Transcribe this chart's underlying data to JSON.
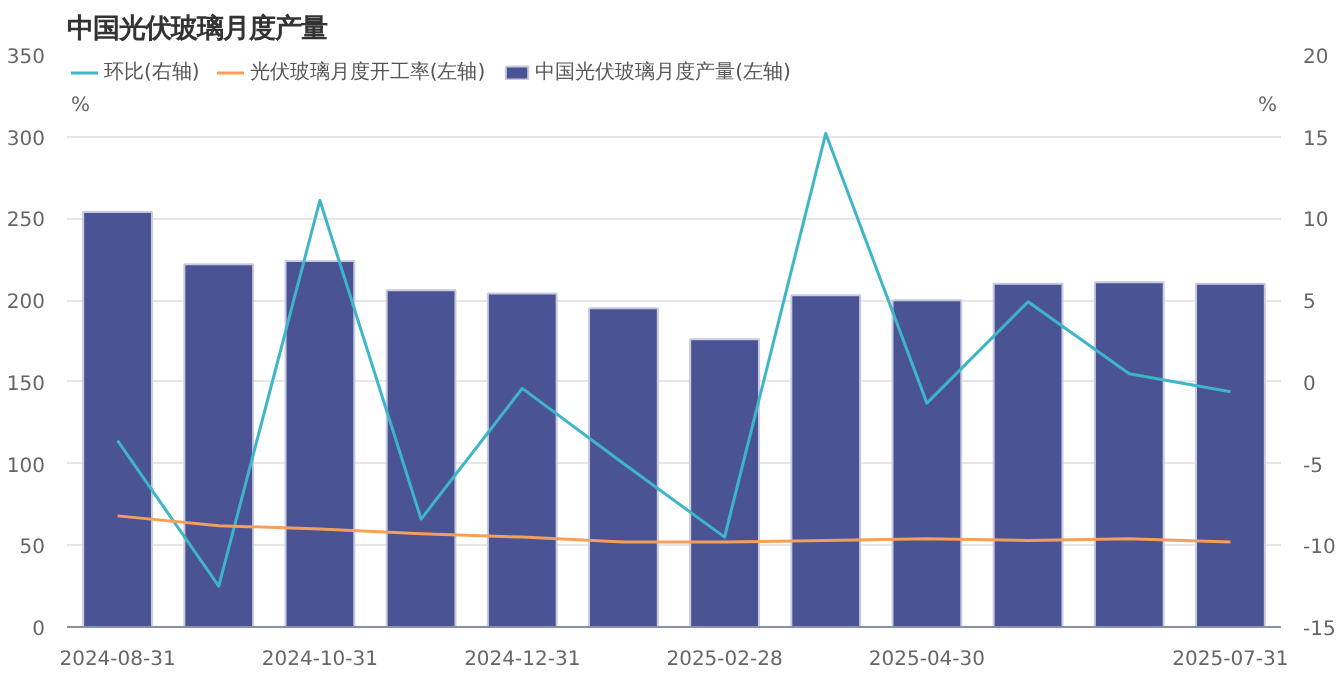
{
  "chart_data": {
    "type": "bar",
    "title": "中国光伏玻璃月度产量",
    "ylabel": "%",
    "y2label": "%",
    "categories": [
      "2024-08-31",
      null,
      "2024-10-31",
      null,
      "2024-12-31",
      null,
      "2025-02-28",
      null,
      "2025-04-30",
      null,
      null,
      "2025-07-31"
    ],
    "series": [
      {
        "name": "环比(右轴)",
        "type": "line",
        "axis": "y2",
        "color": "#3fb5c9",
        "values": [
          -3.6,
          -12.5,
          11.1,
          -8.4,
          -0.4,
          -5,
          -9.5,
          15.2,
          -1.3,
          4.9,
          0.5,
          -0.6
        ]
      },
      {
        "name": "光伏玻璃月度开工率(左轴)",
        "type": "line",
        "color": "#f5a05a",
        "values": [
          68,
          62,
          60,
          57,
          55,
          52,
          52,
          53,
          54,
          53,
          54,
          52
        ]
      },
      {
        "name": "中国光伏玻璃月度产量(左轴)",
        "color": "#4a5394",
        "values": [
          254,
          222,
          224,
          206,
          204,
          195,
          176,
          203,
          200,
          210,
          211,
          210
        ]
      }
    ],
    "ylim": [
      0,
      350
    ],
    "yticks": [
      0,
      50,
      100,
      150,
      200,
      250,
      300,
      350
    ],
    "y2lim": [
      -15,
      20
    ],
    "y2ticks": [
      -15,
      -10,
      -5,
      0,
      5,
      10,
      15,
      20
    ],
    "grid": "y",
    "legend": "top left",
    "marker": "none",
    "line_style": "solid"
  }
}
